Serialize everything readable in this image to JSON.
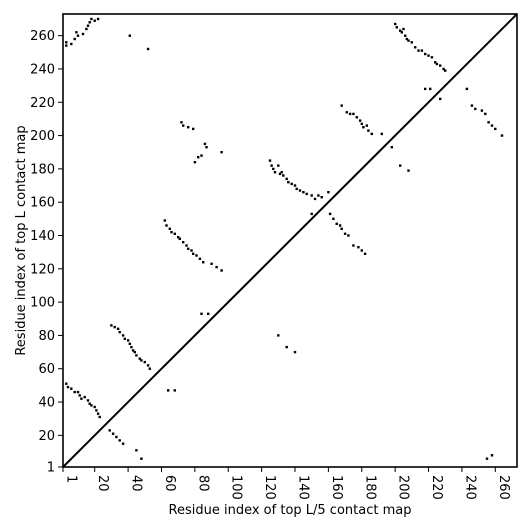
{
  "chart_data": {
    "type": "scatter",
    "title": "",
    "xlabel": "Residue index of top L/5 contact map",
    "ylabel": "Residue index of top L contact map",
    "xlim": [
      1,
      273
    ],
    "ylim": [
      1,
      273
    ],
    "x_ticks": [
      1,
      20,
      40,
      60,
      80,
      100,
      120,
      140,
      160,
      180,
      200,
      220,
      240,
      260
    ],
    "y_ticks": [
      1,
      20,
      40,
      60,
      80,
      100,
      120,
      140,
      160,
      180,
      200,
      220,
      240,
      260
    ],
    "x_tick_rotation": -90,
    "grid": false,
    "legend": "none",
    "marker_color": "#000000",
    "diagonal": {
      "from": [
        1,
        1
      ],
      "to": [
        273,
        273
      ]
    },
    "series": [
      {
        "region": "upper-triangle",
        "points": [
          [
            3,
            254
          ],
          [
            3,
            256
          ],
          [
            6,
            255
          ],
          [
            8,
            258
          ],
          [
            9,
            262
          ],
          [
            10,
            260
          ],
          [
            13,
            261
          ],
          [
            15,
            264
          ],
          [
            16,
            266
          ],
          [
            17,
            268
          ],
          [
            18,
            270
          ],
          [
            20,
            269
          ],
          [
            22,
            270
          ],
          [
            41,
            260
          ],
          [
            52,
            252
          ],
          [
            72,
            208
          ],
          [
            73,
            206
          ],
          [
            76,
            205
          ],
          [
            79,
            204
          ],
          [
            80,
            184
          ],
          [
            82,
            187
          ],
          [
            84,
            188
          ],
          [
            86,
            195
          ],
          [
            87,
            193
          ],
          [
            96,
            190
          ],
          [
            125,
            185
          ],
          [
            126,
            182
          ],
          [
            127,
            180
          ],
          [
            128,
            178
          ],
          [
            130,
            182
          ],
          [
            131,
            177
          ],
          [
            132,
            178
          ],
          [
            133,
            176
          ],
          [
            135,
            174
          ],
          [
            136,
            172
          ],
          [
            138,
            171
          ],
          [
            140,
            170
          ],
          [
            141,
            168
          ],
          [
            143,
            167
          ],
          [
            145,
            166
          ],
          [
            147,
            165
          ],
          [
            150,
            164
          ],
          [
            152,
            162
          ],
          [
            154,
            164
          ],
          [
            156,
            163
          ],
          [
            160,
            166
          ],
          [
            168,
            218
          ],
          [
            171,
            214
          ],
          [
            173,
            213
          ],
          [
            175,
            213
          ],
          [
            177,
            211
          ],
          [
            179,
            209
          ],
          [
            180,
            207
          ],
          [
            181,
            205
          ],
          [
            183,
            206
          ],
          [
            184,
            203
          ],
          [
            186,
            201
          ],
          [
            192,
            201
          ],
          [
            198,
            193
          ],
          [
            200,
            267
          ],
          [
            201,
            265
          ],
          [
            203,
            263
          ],
          [
            204,
            262
          ],
          [
            205,
            264
          ],
          [
            206,
            260
          ],
          [
            207,
            258
          ],
          [
            208,
            257
          ],
          [
            210,
            256
          ],
          [
            212,
            253
          ],
          [
            214,
            251
          ],
          [
            216,
            251
          ],
          [
            218,
            249
          ],
          [
            220,
            248
          ],
          [
            222,
            247
          ],
          [
            224,
            244
          ],
          [
            225,
            243
          ],
          [
            227,
            242
          ],
          [
            229,
            240
          ],
          [
            230,
            239
          ],
          [
            243,
            228
          ],
          [
            203,
            182
          ],
          [
            208,
            179
          ],
          [
            218,
            228
          ],
          [
            221,
            228
          ],
          [
            227,
            222
          ],
          [
            246,
            218
          ],
          [
            248,
            216
          ],
          [
            252,
            215
          ],
          [
            254,
            213
          ],
          [
            256,
            208
          ],
          [
            258,
            206
          ],
          [
            260,
            204
          ],
          [
            264,
            200
          ]
        ]
      },
      {
        "region": "lower-triangle",
        "points": [
          [
            3,
            51
          ],
          [
            4,
            49
          ],
          [
            6,
            48
          ],
          [
            8,
            46
          ],
          [
            10,
            46
          ],
          [
            11,
            44
          ],
          [
            12,
            42
          ],
          [
            14,
            43
          ],
          [
            16,
            41
          ],
          [
            17,
            39
          ],
          [
            18,
            38
          ],
          [
            20,
            37
          ],
          [
            21,
            35
          ],
          [
            22,
            33
          ],
          [
            23,
            31
          ],
          [
            30,
            86
          ],
          [
            32,
            85
          ],
          [
            34,
            84
          ],
          [
            35,
            82
          ],
          [
            37,
            80
          ],
          [
            38,
            78
          ],
          [
            40,
            77
          ],
          [
            41,
            75
          ],
          [
            42,
            73
          ],
          [
            43,
            71
          ],
          [
            44,
            70
          ],
          [
            45,
            68
          ],
          [
            47,
            66
          ],
          [
            48,
            65
          ],
          [
            50,
            64
          ],
          [
            52,
            62
          ],
          [
            53,
            60
          ],
          [
            29,
            23
          ],
          [
            31,
            21
          ],
          [
            33,
            19
          ],
          [
            35,
            17
          ],
          [
            37,
            15
          ],
          [
            45,
            11
          ],
          [
            48,
            6
          ],
          [
            62,
            149
          ],
          [
            63,
            146
          ],
          [
            65,
            144
          ],
          [
            66,
            142
          ],
          [
            68,
            141
          ],
          [
            70,
            139
          ],
          [
            71,
            138
          ],
          [
            73,
            136
          ],
          [
            75,
            134
          ],
          [
            76,
            132
          ],
          [
            78,
            131
          ],
          [
            79,
            129
          ],
          [
            81,
            128
          ],
          [
            83,
            126
          ],
          [
            85,
            124
          ],
          [
            90,
            123
          ],
          [
            93,
            121
          ],
          [
            96,
            119
          ],
          [
            64,
            47
          ],
          [
            68,
            47
          ],
          [
            84,
            93
          ],
          [
            88,
            93
          ],
          [
            130,
            80
          ],
          [
            135,
            73
          ],
          [
            140,
            70
          ],
          [
            150,
            153
          ],
          [
            161,
            153
          ],
          [
            163,
            150
          ],
          [
            165,
            147
          ],
          [
            167,
            146
          ],
          [
            168,
            144
          ],
          [
            170,
            141
          ],
          [
            172,
            140
          ],
          [
            175,
            134
          ],
          [
            178,
            133
          ],
          [
            180,
            131
          ],
          [
            182,
            129
          ],
          [
            255,
            6
          ],
          [
            258,
            8
          ]
        ]
      }
    ]
  }
}
